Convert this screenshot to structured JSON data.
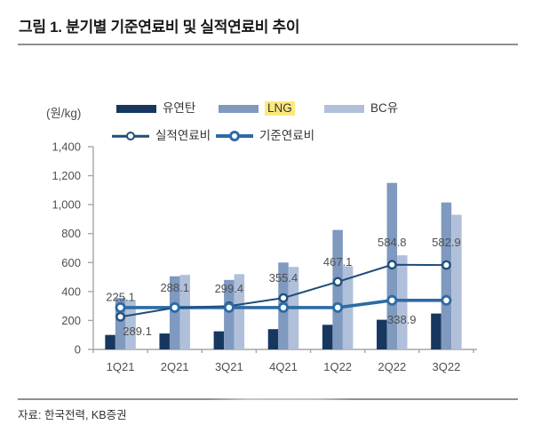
{
  "figure": {
    "title": "그림 1. 분기별 기준연료비 및 실적연료비 추이",
    "unit_label": "(원/kg)",
    "source": "자료: 한국전력, KB증권"
  },
  "colors": {
    "coal_bar": "#17375e",
    "lng_bar": "#7f99bf",
    "bc_oil_bar": "#b1c0da",
    "actual_line": "#1f4e79",
    "standard_line": "#2d6ba3",
    "lng_legend_highlight": "#fce97d",
    "axis": "#a6a6a6",
    "tick_text": "#4f4f4f",
    "data_label_text": "#4f4f4f"
  },
  "chart_data": {
    "type": "bar+line",
    "title": "그림 1. 분기별 기준연료비 및 실적연료비 추이",
    "unit": "원/kg",
    "categories": [
      "1Q21",
      "2Q21",
      "3Q21",
      "4Q21",
      "1Q22",
      "2Q22",
      "3Q22"
    ],
    "bar_series": [
      {
        "name": "유연탄",
        "color": "#17375e",
        "values": [
          100,
          110,
          125,
          140,
          170,
          205,
          248
        ]
      },
      {
        "name": "LNG",
        "color": "#7f99bf",
        "legend_highlight": "#fce97d",
        "values": [
          355,
          505,
          480,
          600,
          825,
          1150,
          1015
        ]
      },
      {
        "name": "BC유",
        "color": "#b1c0da",
        "values": [
          340,
          515,
          520,
          570,
          575,
          650,
          930
        ]
      }
    ],
    "line_series": [
      {
        "name": "실적연료비",
        "color": "#1f4e79",
        "stroke_width": 2,
        "values": [
          225.1,
          288.1,
          299.4,
          355.4,
          467.1,
          584.8,
          582.9
        ],
        "point_labels": [
          "225.1",
          "288.1",
          "299.4",
          "355.4",
          "467.1",
          "584.8",
          "582.9"
        ]
      },
      {
        "name": "기준연료비",
        "color": "#2d6ba3",
        "stroke_width": 3.6,
        "values": [
          289.1,
          289.1,
          289.1,
          289.1,
          289.1,
          338.9,
          338.9
        ],
        "point_labels": [
          "289.1",
          "",
          "",
          "",
          "",
          "338.9",
          ""
        ]
      }
    ],
    "ylim": [
      0,
      1400
    ],
    "ytick_step": 200,
    "ytick_labels": [
      "0",
      "200",
      "400",
      "600",
      "800",
      "1,000",
      "1,200",
      "1,400"
    ],
    "legend_position": "top",
    "grid": false,
    "marker": "open-circle"
  }
}
